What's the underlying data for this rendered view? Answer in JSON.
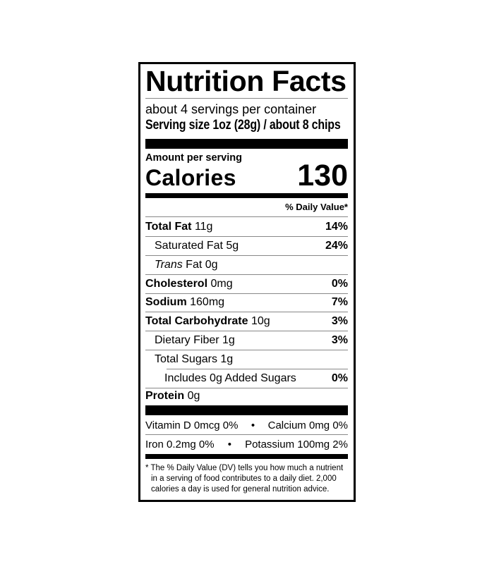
{
  "title": "Nutrition Facts",
  "servings_per_container": "about 4 servings per container",
  "serving_size": "Serving size 1oz (28g) / about 8 chips",
  "amount_per_serving": "Amount per serving",
  "calories_label": "Calories",
  "calories_value": "130",
  "daily_value_header": "% Daily Value*",
  "nutrients": [
    {
      "name": "Total Fat",
      "amount": "11g",
      "dv": "14%"
    },
    {
      "name": "Saturated Fat",
      "amount": "5g",
      "dv": "24%"
    },
    {
      "name": "Trans",
      "name_rest": "Fat",
      "amount": "0g",
      "dv": ""
    },
    {
      "name": "Cholesterol",
      "amount": "0mg",
      "dv": "0%"
    },
    {
      "name": "Sodium",
      "amount": "160mg",
      "dv": "7%"
    },
    {
      "name": "Total Carbohydrate",
      "amount": "10g",
      "dv": "3%"
    },
    {
      "name": "Dietary Fiber",
      "amount": "1g",
      "dv": "3%"
    },
    {
      "name": "Total Sugars",
      "amount": "1g",
      "dv": ""
    },
    {
      "name": "Includes 0g Added Sugars",
      "amount": "",
      "dv": "0%"
    },
    {
      "name": "Protein",
      "amount": "0g",
      "dv": ""
    }
  ],
  "vitamins": [
    {
      "left": "Vitamin D 0mcg 0%",
      "sep": "•",
      "right": "Calcium 0mg 0%"
    },
    {
      "left": "Iron 0.2mg 0%",
      "sep": "•",
      "right": "Potassium 100mg 2%"
    }
  ],
  "footnote": [
    "* The % Daily Value (DV) tells you how much a nutrient",
    "in a serving of food contributes to a daily diet. 2,000",
    "calories a day is used for general nutrition advice."
  ]
}
